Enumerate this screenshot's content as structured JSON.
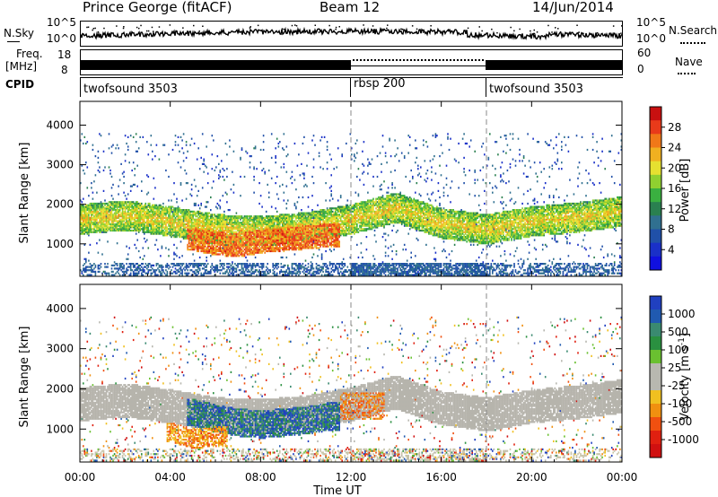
{
  "header": {
    "station": "Prince George (fitACF)",
    "beam": "Beam 12",
    "date": "14/Jun/2014"
  },
  "panels": {
    "nsky": {
      "label": "N.Sky",
      "tick_top": "10^5",
      "tick_bottom": "10^0"
    },
    "nsearch": {
      "label": "N.Search",
      "tick_top": "10^5",
      "tick_bottom": "10^0"
    },
    "freq": {
      "label_line1": "Freq.",
      "label_line2": "[MHz]",
      "tick_top": "18",
      "tick_bottom": "8"
    },
    "nave": {
      "label": "Nave",
      "tick_top": "60",
      "tick_bottom": "0"
    },
    "cpid": {
      "label": "CPID",
      "segments": [
        {
          "name": "twofsound 3503",
          "start": 0
        },
        {
          "name": "rbsp 200",
          "start": 12
        },
        {
          "name": "twofsound 3503",
          "start": 18
        }
      ]
    }
  },
  "x_axis": {
    "title": "Time UT",
    "tick_labels": [
      "00:00",
      "04:00",
      "08:00",
      "12:00",
      "16:00",
      "20:00",
      "00:00"
    ]
  },
  "colorbars": {
    "power": {
      "title": "Power [dB]",
      "labels": [
        "28",
        "24",
        "20",
        "16",
        "12",
        "8",
        "4"
      ],
      "colors": [
        "#c81010",
        "#e83a1a",
        "#f07818",
        "#f0b020",
        "#e6e030",
        "#90d030",
        "#3ab040",
        "#2a8050",
        "#307090",
        "#2050a8",
        "#1a30c8",
        "#1010e0"
      ]
    },
    "velocity": {
      "title": "Velocity [m s",
      "title_sup": "-1",
      "title_end": "]",
      "labels": [
        "1000",
        "500",
        "100",
        "25",
        "-25",
        "-100",
        "-500",
        "-1000"
      ],
      "colors": [
        "#2040c0",
        "#205ab0",
        "#3a8a70",
        "#2a9040",
        "#6ac030",
        "#b8b8b0",
        "#b8b8b0",
        "#f0c020",
        "#f09010",
        "#f05010",
        "#e02010",
        "#d01010"
      ]
    }
  },
  "chart_data": [
    {
      "type": "heatmap",
      "title": "Power",
      "xlabel": "Time UT",
      "ylabel": "Slant Range [km]",
      "xlim": [
        0,
        24
      ],
      "ylim": [
        180,
        4600
      ],
      "y_ticks": [
        "1000",
        "2000",
        "3000",
        "4000"
      ],
      "colorbar": "Power [dB]",
      "clim": [
        0,
        30
      ],
      "features": [
        {
          "name": "main echo band",
          "x": [
            0,
            2,
            4,
            6,
            8,
            10,
            12,
            14,
            16,
            18,
            20,
            22,
            24
          ],
          "y": [
            1600,
            1700,
            1550,
            1350,
            1300,
            1400,
            1600,
            1900,
            1500,
            1350,
            1550,
            1650,
            1800
          ],
          "power": 14
        },
        {
          "name": "strong near-range echoes",
          "x": [
            5,
            6,
            7,
            8,
            9,
            10,
            11
          ],
          "y": [
            1100,
            1000,
            950,
            1050,
            1100,
            1150,
            1200
          ],
          "power": 24
        }
      ]
    },
    {
      "type": "heatmap",
      "title": "Velocity",
      "xlabel": "Time UT",
      "ylabel": "Slant Range [km]",
      "xlim": [
        0,
        24
      ],
      "ylim": [
        180,
        4600
      ],
      "y_ticks": [
        "1000",
        "2000",
        "3000",
        "4000"
      ],
      "colorbar": "Velocity [m s-1]",
      "clim": [
        -1000,
        1000
      ],
      "features": [
        {
          "name": "ground scatter band",
          "x": [
            0,
            2,
            4,
            6,
            8,
            10,
            12,
            14,
            16,
            18,
            20,
            22,
            24
          ],
          "y": [
            1600,
            1700,
            1550,
            1350,
            1300,
            1400,
            1600,
            1900,
            1500,
            1350,
            1550,
            1650,
            1800
          ],
          "velocity": 0
        },
        {
          "name": "positive velocity echoes",
          "x": [
            5,
            6,
            7,
            8,
            9,
            10,
            11
          ],
          "y": [
            1400,
            1250,
            1150,
            1100,
            1150,
            1200,
            1300
          ],
          "velocity": 300
        },
        {
          "name": "negative velocity echoes",
          "x": [
            4,
            5,
            6,
            12,
            13
          ],
          "y": [
            900,
            750,
            800,
            1500,
            1700
          ],
          "velocity": -300
        }
      ]
    }
  ]
}
